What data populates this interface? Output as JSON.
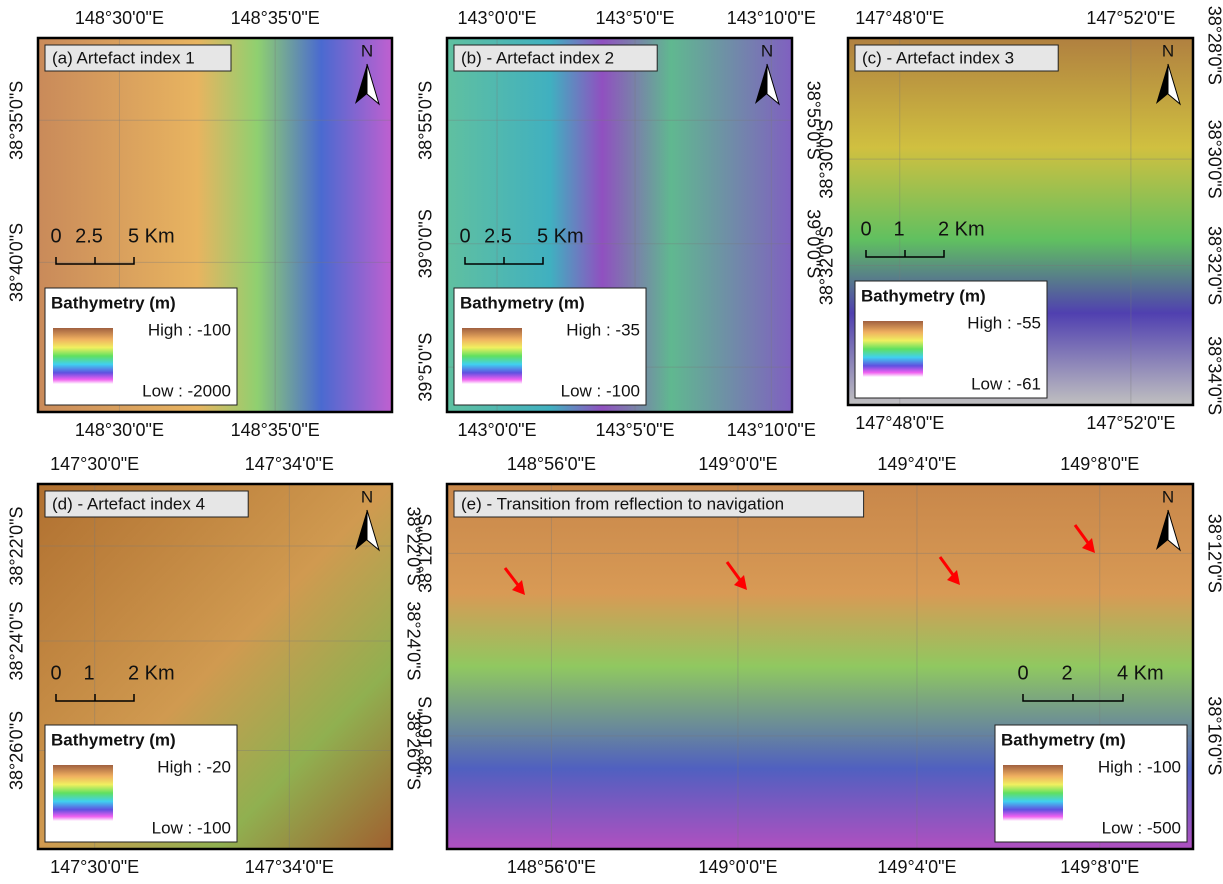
{
  "panels": [
    {
      "title": "(a) Artefact index 1",
      "top": [
        "148°30'0\"E",
        "148°35'0\"E"
      ],
      "bottom": [
        "148°30'0\"E",
        "148°35'0\"E"
      ],
      "left": [
        "38°35'0\"S",
        "38°40'0\"S"
      ],
      "right": [],
      "north": "N",
      "scale": [
        "0",
        "2.5",
        "5 Km"
      ],
      "legend": {
        "title": "Bathymetry (m)",
        "high": "High : -100",
        "low": "Low : -2000"
      }
    },
    {
      "title": "(b) - Artefact index 2",
      "top": [
        "143°0'0\"E",
        "143°5'0\"E",
        "143°10'0\"E"
      ],
      "bottom": [
        "143°0'0\"E",
        "143°5'0\"E",
        "143°10'0\"E"
      ],
      "left": [
        "38°55'0\"S",
        "39°0'0\"S",
        "39°5'0\"S"
      ],
      "right": [
        "38°55'0\"S",
        "39°0'0\"S"
      ],
      "north": "N",
      "scale": [
        "0",
        "2.5",
        "5 Km"
      ],
      "legend": {
        "title": "Bathymetry (m)",
        "high": "High : -35",
        "low": "Low : -100"
      }
    },
    {
      "title": "(c) - Artefact index 3",
      "top": [
        "147°48'0\"E",
        "147°52'0\"E"
      ],
      "bottom": [
        "147°48'0\"E",
        "147°52'0\"E"
      ],
      "left": [
        "38°30'0\"S",
        "38°32'0\"S"
      ],
      "right": [
        "38°28'0\"S",
        "38°30'0\"S",
        "38°32'0\"S",
        "38°34'0\"S"
      ],
      "north": "N",
      "scale": [
        "0",
        "1",
        "2 Km"
      ],
      "legend": {
        "title": "Bathymetry (m)",
        "high": "High : -55",
        "low": "Low : -61"
      }
    },
    {
      "title": "(d) - Artefact index 4",
      "top": [
        "147°30'0\"E",
        "147°34'0\"E"
      ],
      "bottom": [
        "147°30'0\"E",
        "147°34'0\"E"
      ],
      "left": [
        "38°22'0\"S",
        "38°24'0\"S",
        "38°26'0\"S"
      ],
      "right": [
        "38°22'0\"S",
        "38°24'0\"S",
        "38°26'0\"S"
      ],
      "north": "N",
      "scale": [
        "0",
        "1",
        "2 Km"
      ],
      "legend": {
        "title": "Bathymetry (m)",
        "high": "High : -20",
        "low": "Low : -100"
      }
    },
    {
      "title": "(e) - Transition from reflection to navigation",
      "top": [
        "148°56'0\"E",
        "149°0'0\"E",
        "149°4'0\"E",
        "149°8'0\"E"
      ],
      "bottom": [
        "148°56'0\"E",
        "149°0'0\"E",
        "149°4'0\"E",
        "149°8'0\"E"
      ],
      "left": [
        "38°12'0\"S",
        "38°16'0\"S"
      ],
      "right": [
        "38°12'0\"S",
        "38°16'0\"S"
      ],
      "north": "N",
      "scale": [
        "0",
        "2",
        "4 Km"
      ],
      "legend": {
        "title": "Bathymetry (m)",
        "high": "High : -100",
        "low": "Low : -500"
      }
    }
  ]
}
